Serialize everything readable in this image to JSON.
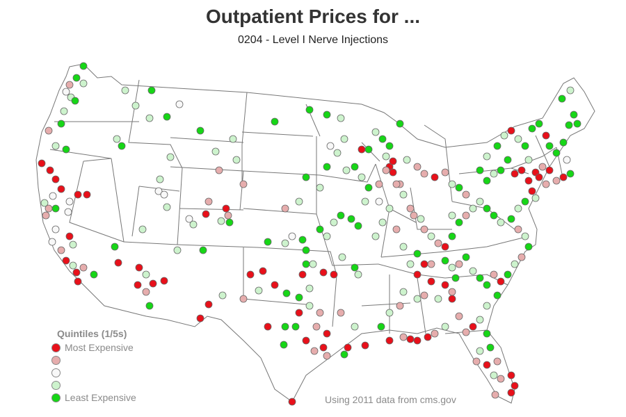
{
  "title": "Outpatient Prices for ...",
  "subtitle": "0204 - Level I Nerve Injections",
  "source": "Using 2011 data from cms.gov",
  "legend": {
    "title": "Quintiles (1/5s)",
    "items": [
      {
        "label": "Most Expensive",
        "color": "#e8101a"
      },
      {
        "label": "",
        "color": "#e6adad"
      },
      {
        "label": "",
        "color": "#f8f8f8"
      },
      {
        "label": "",
        "color": "#cdf3cd"
      },
      {
        "label": "Least Expensive",
        "color": "#17d617"
      }
    ]
  },
  "map": {
    "region": "Contiguous United States",
    "boundary_color": "#777777",
    "point_outline": "#666666"
  }
}
